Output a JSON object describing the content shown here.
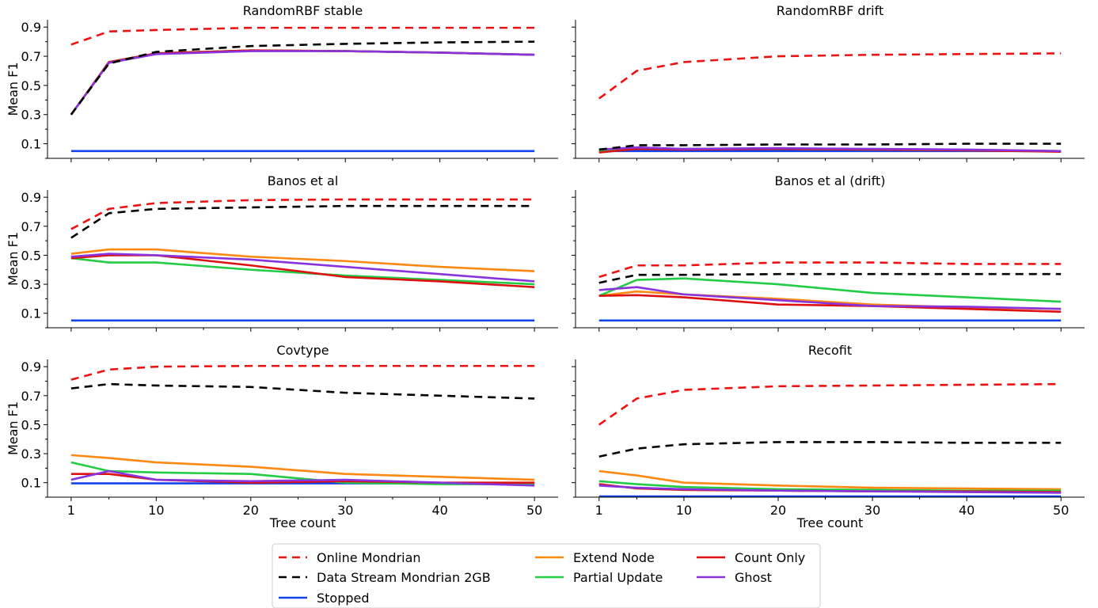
{
  "chart_data": {
    "type": "line",
    "xlabel": "Tree count",
    "ylabel": "Mean F1",
    "x": [
      1,
      5,
      10,
      20,
      30,
      40,
      50
    ],
    "xticks": [
      1,
      10,
      20,
      30,
      40,
      50
    ],
    "yticks": [
      0.1,
      0.3,
      0.5,
      0.7,
      0.9
    ],
    "xlim": [
      -1.5,
      52.5
    ],
    "ylim": [
      0.0,
      0.95
    ],
    "colors": {
      "Online Mondrian": "#ee1111",
      "Data Stream Mondrian 2GB": "#000000",
      "Stopped": "#1144ee",
      "Extend Node": "#ff8811",
      "Partial Update": "#22cc44",
      "Count Only": "#dd1111",
      "Ghost": "#8833dd"
    },
    "dashed_series": [
      "Online Mondrian",
      "Data Stream Mondrian 2GB"
    ],
    "legend": {
      "placement": "bottom-center",
      "columns": [
        [
          "Online Mondrian",
          "Data Stream Mondrian 2GB",
          "Stopped"
        ],
        [
          "Extend Node",
          "Partial Update"
        ],
        [
          "Count Only",
          "Ghost"
        ]
      ]
    },
    "panels": [
      {
        "title": "RandomRBF stable",
        "series": [
          {
            "name": "Stopped",
            "values": [
              0.05,
              0.05,
              0.05,
              0.05,
              0.05,
              0.05,
              0.05
            ]
          },
          {
            "name": "Extend Node",
            "values": [
              0.3,
              0.66,
              0.72,
              0.74,
              0.735,
              0.725,
              0.71
            ]
          },
          {
            "name": "Partial Update",
            "values": [
              0.3,
              0.66,
              0.72,
              0.74,
              0.735,
              0.725,
              0.71
            ]
          },
          {
            "name": "Count Only",
            "values": [
              0.3,
              0.66,
              0.72,
              0.74,
              0.735,
              0.725,
              0.71
            ]
          },
          {
            "name": "Ghost",
            "values": [
              0.3,
              0.655,
              0.715,
              0.735,
              0.735,
              0.725,
              0.71
            ]
          },
          {
            "name": "Data Stream Mondrian 2GB",
            "values": [
              0.3,
              0.65,
              0.73,
              0.77,
              0.785,
              0.795,
              0.8
            ]
          },
          {
            "name": "Online Mondrian",
            "values": [
              0.78,
              0.87,
              0.88,
              0.895,
              0.895,
              0.895,
              0.895
            ]
          }
        ]
      },
      {
        "title": "RandomRBF drift",
        "series": [
          {
            "name": "Stopped",
            "values": [
              0.05,
              0.05,
              0.05,
              0.05,
              0.05,
              0.05,
              0.05
            ]
          },
          {
            "name": "Extend Node",
            "values": [
              0.05,
              0.07,
              0.065,
              0.065,
              0.06,
              0.055,
              0.05
            ]
          },
          {
            "name": "Partial Update",
            "values": [
              0.05,
              0.07,
              0.065,
              0.065,
              0.06,
              0.055,
              0.05
            ]
          },
          {
            "name": "Count Only",
            "values": [
              0.04,
              0.065,
              0.06,
              0.065,
              0.06,
              0.055,
              0.045
            ]
          },
          {
            "name": "Ghost",
            "values": [
              0.06,
              0.075,
              0.065,
              0.07,
              0.065,
              0.06,
              0.05
            ]
          },
          {
            "name": "Data Stream Mondrian 2GB",
            "values": [
              0.06,
              0.09,
              0.09,
              0.095,
              0.095,
              0.1,
              0.1
            ]
          },
          {
            "name": "Online Mondrian",
            "values": [
              0.41,
              0.6,
              0.66,
              0.7,
              0.71,
              0.715,
              0.72
            ]
          }
        ]
      },
      {
        "title": "Banos et al",
        "series": [
          {
            "name": "Stopped",
            "values": [
              0.05,
              0.05,
              0.05,
              0.05,
              0.05,
              0.05,
              0.05
            ]
          },
          {
            "name": "Extend Node",
            "values": [
              0.51,
              0.54,
              0.54,
              0.49,
              0.46,
              0.42,
              0.39
            ]
          },
          {
            "name": "Partial Update",
            "values": [
              0.48,
              0.45,
              0.45,
              0.4,
              0.36,
              0.33,
              0.3
            ]
          },
          {
            "name": "Count Only",
            "values": [
              0.48,
              0.5,
              0.5,
              0.43,
              0.35,
              0.32,
              0.28
            ]
          },
          {
            "name": "Ghost",
            "values": [
              0.49,
              0.51,
              0.5,
              0.47,
              0.42,
              0.37,
              0.32
            ]
          },
          {
            "name": "Data Stream Mondrian 2GB",
            "values": [
              0.62,
              0.79,
              0.82,
              0.83,
              0.84,
              0.84,
              0.84
            ]
          },
          {
            "name": "Online Mondrian",
            "values": [
              0.68,
              0.82,
              0.86,
              0.88,
              0.885,
              0.885,
              0.885
            ]
          }
        ]
      },
      {
        "title": "Banos et al (drift)",
        "series": [
          {
            "name": "Stopped",
            "values": [
              0.05,
              0.05,
              0.05,
              0.05,
              0.05,
              0.05,
              0.05
            ]
          },
          {
            "name": "Extend Node",
            "values": [
              0.22,
              0.25,
              0.23,
              0.2,
              0.16,
              0.14,
              0.13
            ]
          },
          {
            "name": "Partial Update",
            "values": [
              0.22,
              0.33,
              0.34,
              0.3,
              0.24,
              0.21,
              0.18
            ]
          },
          {
            "name": "Count Only",
            "values": [
              0.22,
              0.225,
              0.21,
              0.16,
              0.15,
              0.13,
              0.11
            ]
          },
          {
            "name": "Ghost",
            "values": [
              0.26,
              0.28,
              0.23,
              0.19,
              0.15,
              0.145,
              0.13
            ]
          },
          {
            "name": "Data Stream Mondrian 2GB",
            "values": [
              0.31,
              0.365,
              0.365,
              0.37,
              0.37,
              0.37,
              0.37
            ]
          },
          {
            "name": "Online Mondrian",
            "values": [
              0.35,
              0.43,
              0.43,
              0.45,
              0.45,
              0.44,
              0.44
            ]
          }
        ]
      },
      {
        "title": "Covtype",
        "series": [
          {
            "name": "Stopped",
            "values": [
              0.095,
              0.095,
              0.095,
              0.095,
              0.095,
              0.095,
              0.095
            ]
          },
          {
            "name": "Extend Node",
            "values": [
              0.29,
              0.27,
              0.24,
              0.21,
              0.16,
              0.14,
              0.12
            ]
          },
          {
            "name": "Partial Update",
            "values": [
              0.24,
              0.18,
              0.17,
              0.16,
              0.1,
              0.09,
              0.09
            ]
          },
          {
            "name": "Count Only",
            "values": [
              0.16,
              0.16,
              0.12,
              0.1,
              0.11,
              0.1,
              0.1
            ]
          },
          {
            "name": "Ghost",
            "values": [
              0.12,
              0.18,
              0.12,
              0.11,
              0.12,
              0.1,
              0.08
            ]
          },
          {
            "name": "Data Stream Mondrian 2GB",
            "values": [
              0.75,
              0.78,
              0.77,
              0.76,
              0.72,
              0.7,
              0.68
            ]
          },
          {
            "name": "Online Mondrian",
            "values": [
              0.81,
              0.88,
              0.9,
              0.905,
              0.905,
              0.905,
              0.905
            ]
          }
        ]
      },
      {
        "title": "Recofit",
        "series": [
          {
            "name": "Stopped",
            "values": [
              0.005,
              0.005,
              0.005,
              0.005,
              0.005,
              0.005,
              0.005
            ]
          },
          {
            "name": "Extend Node",
            "values": [
              0.18,
              0.15,
              0.1,
              0.08,
              0.065,
              0.06,
              0.055
            ]
          },
          {
            "name": "Partial Update",
            "values": [
              0.11,
              0.09,
              0.07,
              0.055,
              0.05,
              0.045,
              0.045
            ]
          },
          {
            "name": "Count Only",
            "values": [
              0.09,
              0.06,
              0.05,
              0.045,
              0.04,
              0.04,
              0.035
            ]
          },
          {
            "name": "Ghost",
            "values": [
              0.08,
              0.065,
              0.055,
              0.045,
              0.04,
              0.035,
              0.03
            ]
          },
          {
            "name": "Data Stream Mondrian 2GB",
            "values": [
              0.28,
              0.335,
              0.365,
              0.38,
              0.38,
              0.375,
              0.375
            ]
          },
          {
            "name": "Online Mondrian",
            "values": [
              0.5,
              0.68,
              0.74,
              0.765,
              0.77,
              0.775,
              0.78
            ]
          }
        ]
      }
    ]
  }
}
